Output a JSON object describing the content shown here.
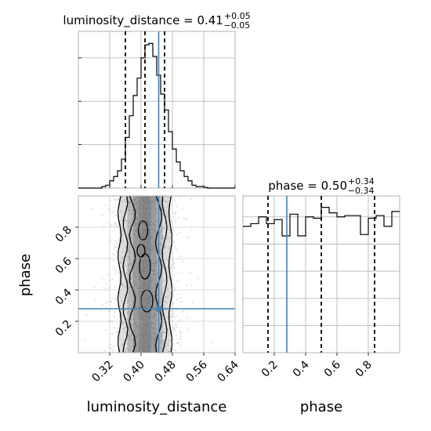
{
  "chart_data": [
    {
      "type": "histogram",
      "panel": "luminosity_distance marginal",
      "title": {
        "name": "luminosity_distance = 0.41",
        "sup": "+0.05",
        "sub": "−0.05"
      },
      "xlim": [
        0.24,
        0.64
      ],
      "bin_edges": [
        0.24,
        0.25,
        0.26,
        0.27,
        0.28,
        0.29,
        0.3,
        0.31,
        0.32,
        0.33,
        0.34,
        0.35,
        0.36,
        0.37,
        0.38,
        0.39,
        0.4,
        0.41,
        0.42,
        0.43,
        0.44,
        0.45,
        0.46,
        0.47,
        0.48,
        0.49,
        0.5,
        0.51,
        0.52,
        0.53,
        0.54,
        0.55,
        0.56,
        0.57,
        0.58,
        0.59,
        0.6,
        0.61,
        0.62,
        0.63,
        0.64
      ],
      "counts": [
        0,
        0,
        0,
        0,
        0,
        0,
        0.01,
        0.02,
        0.05,
        0.08,
        0.12,
        0.2,
        0.35,
        0.5,
        0.64,
        0.76,
        0.9,
        0.99,
        1.0,
        0.91,
        0.78,
        0.65,
        0.54,
        0.39,
        0.27,
        0.18,
        0.12,
        0.08,
        0.05,
        0.02,
        0.01,
        0.01,
        0.005,
        0,
        0,
        0,
        0,
        0,
        0,
        0
      ],
      "quantiles": [
        0.36,
        0.41,
        0.46
      ],
      "truth": 0.445
    },
    {
      "type": "histogram",
      "panel": "phase marginal",
      "title": {
        "name": "phase = 0.50",
        "sup": "+0.34",
        "sub": "−0.34"
      },
      "xlim": [
        0.0,
        1.0
      ],
      "xticks": [
        "0.2",
        "0.4",
        "0.6",
        "0.8"
      ],
      "bin_edges": [
        0.0,
        0.05,
        0.1,
        0.15,
        0.2,
        0.25,
        0.3,
        0.35,
        0.4,
        0.45,
        0.5,
        0.55,
        0.6,
        0.65,
        0.7,
        0.75,
        0.8,
        0.85,
        0.9,
        0.95,
        1.0
      ],
      "counts": [
        0.93,
        0.95,
        1.0,
        0.95,
        0.98,
        0.86,
        1.02,
        0.86,
        1.0,
        0.99,
        1.07,
        1.03,
        1.0,
        1.01,
        1.01,
        0.87,
        0.99,
        1.01,
        0.93,
        1.04
      ],
      "quantiles": [
        0.16,
        0.5,
        0.84
      ],
      "truth": 0.28
    },
    {
      "type": "scatter",
      "panel": "2D: luminosity_distance vs phase",
      "xlabel": "luminosity_distance",
      "ylabel": "phase",
      "xlim": [
        0.24,
        0.64
      ],
      "ylim": [
        0.0,
        1.0
      ],
      "xticks": [
        "0.32",
        "0.40",
        "0.48",
        "0.56",
        "0.64"
      ],
      "yticks": [
        "0.2",
        "0.4",
        "0.6",
        "0.8"
      ],
      "truth": {
        "x": 0.445,
        "y": 0.28
      },
      "density": "samples concentrated at luminosity_distance ≈ 0.41 (±0.05), spread uniformly over phase 0–1, shown as grey points with 2D-histogram shading and black density contours"
    }
  ],
  "colors": {
    "truth": "#4682b4",
    "hist": "#000000",
    "quantile": "#000000",
    "grid": "#b0b0b0",
    "scatter": "#b8b8b8"
  }
}
